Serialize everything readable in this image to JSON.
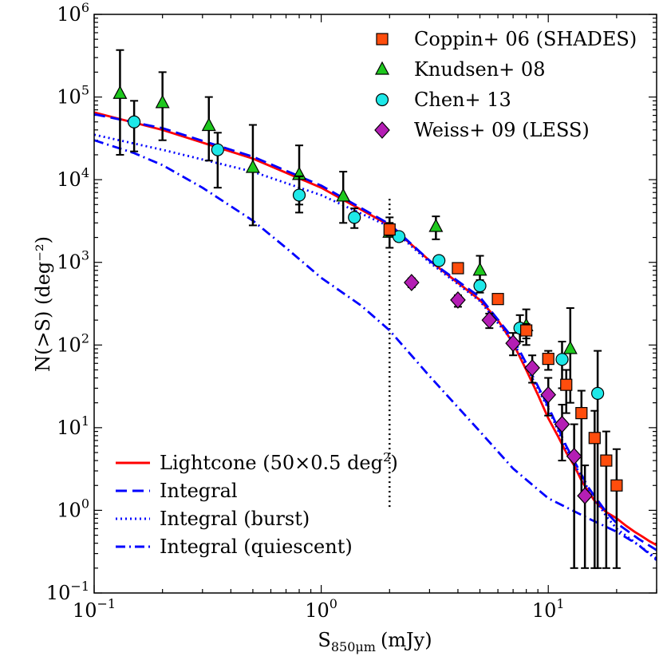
{
  "chart_data": {
    "type": "scatter",
    "title": "",
    "xlabel": "S",
    "xlabel_sub": "850μm",
    "xlabel_unit": "(mJy)",
    "ylabel": "N(>S) (deg⁻²)",
    "xscale": "log",
    "yscale": "log",
    "xlim": [
      0.1,
      30
    ],
    "ylim": [
      0.1,
      1000000
    ],
    "x_tick_labels": [
      {
        "value": 0.1,
        "base": "10",
        "exp": "−1"
      },
      {
        "value": 1,
        "base": "10",
        "exp": "0"
      },
      {
        "value": 10,
        "base": "10",
        "exp": "1"
      }
    ],
    "y_tick_labels": [
      {
        "value": 0.1,
        "base": "10",
        "exp": "−1"
      },
      {
        "value": 1,
        "base": "10",
        "exp": "0"
      },
      {
        "value": 10,
        "base": "10",
        "exp": "1"
      },
      {
        "value": 100,
        "base": "10",
        "exp": "2"
      },
      {
        "value": 1000,
        "base": "10",
        "exp": "3"
      },
      {
        "value": 10000,
        "base": "10",
        "exp": "4"
      },
      {
        "value": 100000,
        "base": "10",
        "exp": "5"
      },
      {
        "value": 1000000,
        "base": "10",
        "exp": "6"
      }
    ],
    "vertical_line": {
      "x": 2,
      "y_range": [
        1.1,
        6000
      ],
      "style": "dotted"
    },
    "legend_top": {
      "placement": "top-right",
      "entries": [
        {
          "label": "Coppin+ 06 (SHADES)",
          "marker": "square",
          "color": "#ff4d0d"
        },
        {
          "label": "Knudsen+ 08",
          "marker": "triangle",
          "color": "#1ec81e"
        },
        {
          "label": "Chen+ 13",
          "marker": "circle",
          "color": "#1ee8e8"
        },
        {
          "label": "Weiss+ 09 (LESS)",
          "marker": "diamond",
          "color": "#b41eb4"
        }
      ]
    },
    "legend_bottom": {
      "placement": "bottom-left",
      "entries": [
        {
          "label": "Lightcone (50×0.5 deg",
          "sup": "2",
          "suffix": ")",
          "style": "solid",
          "color": "#ff0000"
        },
        {
          "label": "Integral",
          "sup": "",
          "suffix": "",
          "style": "dashed",
          "color": "#0000ff"
        },
        {
          "label": "Integral (burst)",
          "sup": "",
          "suffix": "",
          "style": "dotted",
          "color": "#0000ff"
        },
        {
          "label": "Integral (quiescent)",
          "sup": "",
          "suffix": "",
          "style": "dashdot",
          "color": "#0000ff"
        }
      ]
    },
    "points": [
      {
        "series": "Knudsen+ 08",
        "marker": "triangle",
        "color": "#1ec81e",
        "data": [
          {
            "x": 0.13,
            "y": 110000,
            "lo": 20000,
            "hi": 370000
          },
          {
            "x": 0.2,
            "y": 85000,
            "lo": 30000,
            "hi": 200000
          },
          {
            "x": 0.32,
            "y": 45000,
            "lo": 17000,
            "hi": 100000
          },
          {
            "x": 0.5,
            "y": 14000,
            "lo": 2800,
            "hi": 46000
          },
          {
            "x": 0.8,
            "y": 11500,
            "lo": 5000,
            "hi": 26000
          },
          {
            "x": 1.25,
            "y": 6300,
            "lo": 3000,
            "hi": 12500
          },
          {
            "x": 2.0,
            "y": 2300,
            "lo": 1500,
            "hi": 3500
          },
          {
            "x": 3.2,
            "y": 2700,
            "lo": 1900,
            "hi": 3600
          },
          {
            "x": 5.0,
            "y": 800,
            "lo": 500,
            "hi": 1200
          },
          {
            "x": 8.0,
            "y": 170,
            "lo": 100,
            "hi": 270
          },
          {
            "x": 12.5,
            "y": 90,
            "lo": 20,
            "hi": 280
          }
        ]
      },
      {
        "series": "Chen+ 13",
        "marker": "circle",
        "color": "#1ee8e8",
        "data": [
          {
            "x": 0.15,
            "y": 50000,
            "lo": 22000,
            "hi": 90000
          },
          {
            "x": 0.35,
            "y": 23000,
            "lo": 8000,
            "hi": 37000
          },
          {
            "x": 0.8,
            "y": 6500,
            "lo": 4000,
            "hi": 11000
          },
          {
            "x": 1.4,
            "y": 3500,
            "lo": 2600,
            "hi": 4500
          },
          {
            "x": 2.2,
            "y": 2050,
            "lo": 1800,
            "hi": 2300
          },
          {
            "x": 3.3,
            "y": 1050,
            "lo": 950,
            "hi": 1150
          },
          {
            "x": 5.0,
            "y": 520,
            "lo": 430,
            "hi": 610
          },
          {
            "x": 7.5,
            "y": 160,
            "lo": 110,
            "hi": 230
          },
          {
            "x": 11.5,
            "y": 67,
            "lo": 30,
            "hi": 110
          },
          {
            "x": 16.5,
            "y": 26,
            "lo": 0.2,
            "hi": 85
          }
        ]
      },
      {
        "series": "Coppin+ 06 (SHADES)",
        "marker": "square",
        "color": "#ff4d0d",
        "data": [
          {
            "x": 2.0,
            "y": 2500,
            "lo": 2100,
            "hi": 3000
          },
          {
            "x": 4.0,
            "y": 850,
            "lo": 780,
            "hi": 920
          },
          {
            "x": 6.0,
            "y": 360,
            "lo": 320,
            "hi": 400
          },
          {
            "x": 8.0,
            "y": 150,
            "lo": 120,
            "hi": 180
          },
          {
            "x": 10.0,
            "y": 68,
            "lo": 50,
            "hi": 85
          },
          {
            "x": 12.0,
            "y": 33,
            "lo": 15,
            "hi": 50
          },
          {
            "x": 14.0,
            "y": 15,
            "lo": 1.5,
            "hi": 28
          },
          {
            "x": 16.0,
            "y": 7.5,
            "lo": 0.2,
            "hi": 16
          },
          {
            "x": 18.0,
            "y": 4.0,
            "lo": 0.2,
            "hi": 9
          },
          {
            "x": 20.0,
            "y": 2.0,
            "lo": 0.2,
            "hi": 5.5
          }
        ]
      },
      {
        "series": "Weiss+ 09 (LESS)",
        "marker": "diamond",
        "color": "#b41eb4",
        "data": [
          {
            "x": 2.5,
            "y": 570,
            "lo": 500,
            "hi": 640
          },
          {
            "x": 4.0,
            "y": 350,
            "lo": 290,
            "hi": 400
          },
          {
            "x": 5.5,
            "y": 200,
            "lo": 160,
            "hi": 240
          },
          {
            "x": 7.0,
            "y": 105,
            "lo": 75,
            "hi": 140
          },
          {
            "x": 8.5,
            "y": 53,
            "lo": 35,
            "hi": 75
          },
          {
            "x": 10.0,
            "y": 25,
            "lo": 14,
            "hi": 40
          },
          {
            "x": 11.5,
            "y": 11,
            "lo": 4,
            "hi": 19
          },
          {
            "x": 13.0,
            "y": 4.5,
            "lo": 0.2,
            "hi": 11
          },
          {
            "x": 14.5,
            "y": 1.5,
            "lo": 0.2,
            "hi": 3.5
          }
        ]
      }
    ],
    "curves": [
      {
        "name": "Lightcone (50×0.5 deg²)",
        "style": "solid",
        "color": "#ff0000",
        "x": [
          0.1,
          0.2,
          0.5,
          1,
          2,
          3,
          5,
          6,
          7,
          8,
          9,
          10,
          11,
          12,
          13,
          14,
          15,
          16,
          17,
          18,
          20,
          22,
          24,
          26,
          28,
          30
        ],
        "y": [
          65000,
          40000,
          18000,
          8000,
          2800,
          1050,
          350,
          200,
          105,
          50,
          25,
          13,
          8,
          5,
          3.5,
          2.3,
          1.7,
          1.3,
          1.1,
          0.95,
          0.8,
          0.65,
          0.55,
          0.48,
          0.42,
          0.38
        ]
      },
      {
        "name": "Integral",
        "style": "dashed",
        "color": "#0000ff",
        "x": [
          0.1,
          0.2,
          0.5,
          1,
          2,
          3,
          5,
          7,
          8,
          10,
          12,
          15,
          18,
          20,
          25,
          30
        ],
        "y": [
          62000,
          42000,
          19000,
          8500,
          2900,
          1050,
          380,
          120,
          60,
          18,
          6,
          1.9,
          0.95,
          0.7,
          0.45,
          0.33
        ]
      },
      {
        "name": "Integral (burst)",
        "style": "dotted",
        "color": "#0000ff",
        "x": [
          0.1,
          0.2,
          0.5,
          1,
          2,
          3,
          5,
          7,
          8,
          10,
          12,
          15,
          18,
          20,
          25,
          30
        ],
        "y": [
          35000,
          23000,
          12500,
          6500,
          2700,
          1000,
          340,
          110,
          55,
          17,
          5.5,
          1.8,
          0.85,
          0.6,
          0.38,
          0.26
        ]
      },
      {
        "name": "Integral (quiescent)",
        "style": "dashdot",
        "color": "#0000ff",
        "x": [
          0.1,
          0.15,
          0.2,
          0.3,
          0.5,
          0.7,
          1,
          1.5,
          2,
          3,
          5,
          7,
          10,
          15,
          20,
          25,
          30
        ],
        "y": [
          30000,
          21000,
          15000,
          8000,
          3200,
          1500,
          650,
          300,
          150,
          42,
          9,
          3.2,
          1.4,
          0.8,
          0.55,
          0.38,
          0.25
        ]
      }
    ]
  }
}
